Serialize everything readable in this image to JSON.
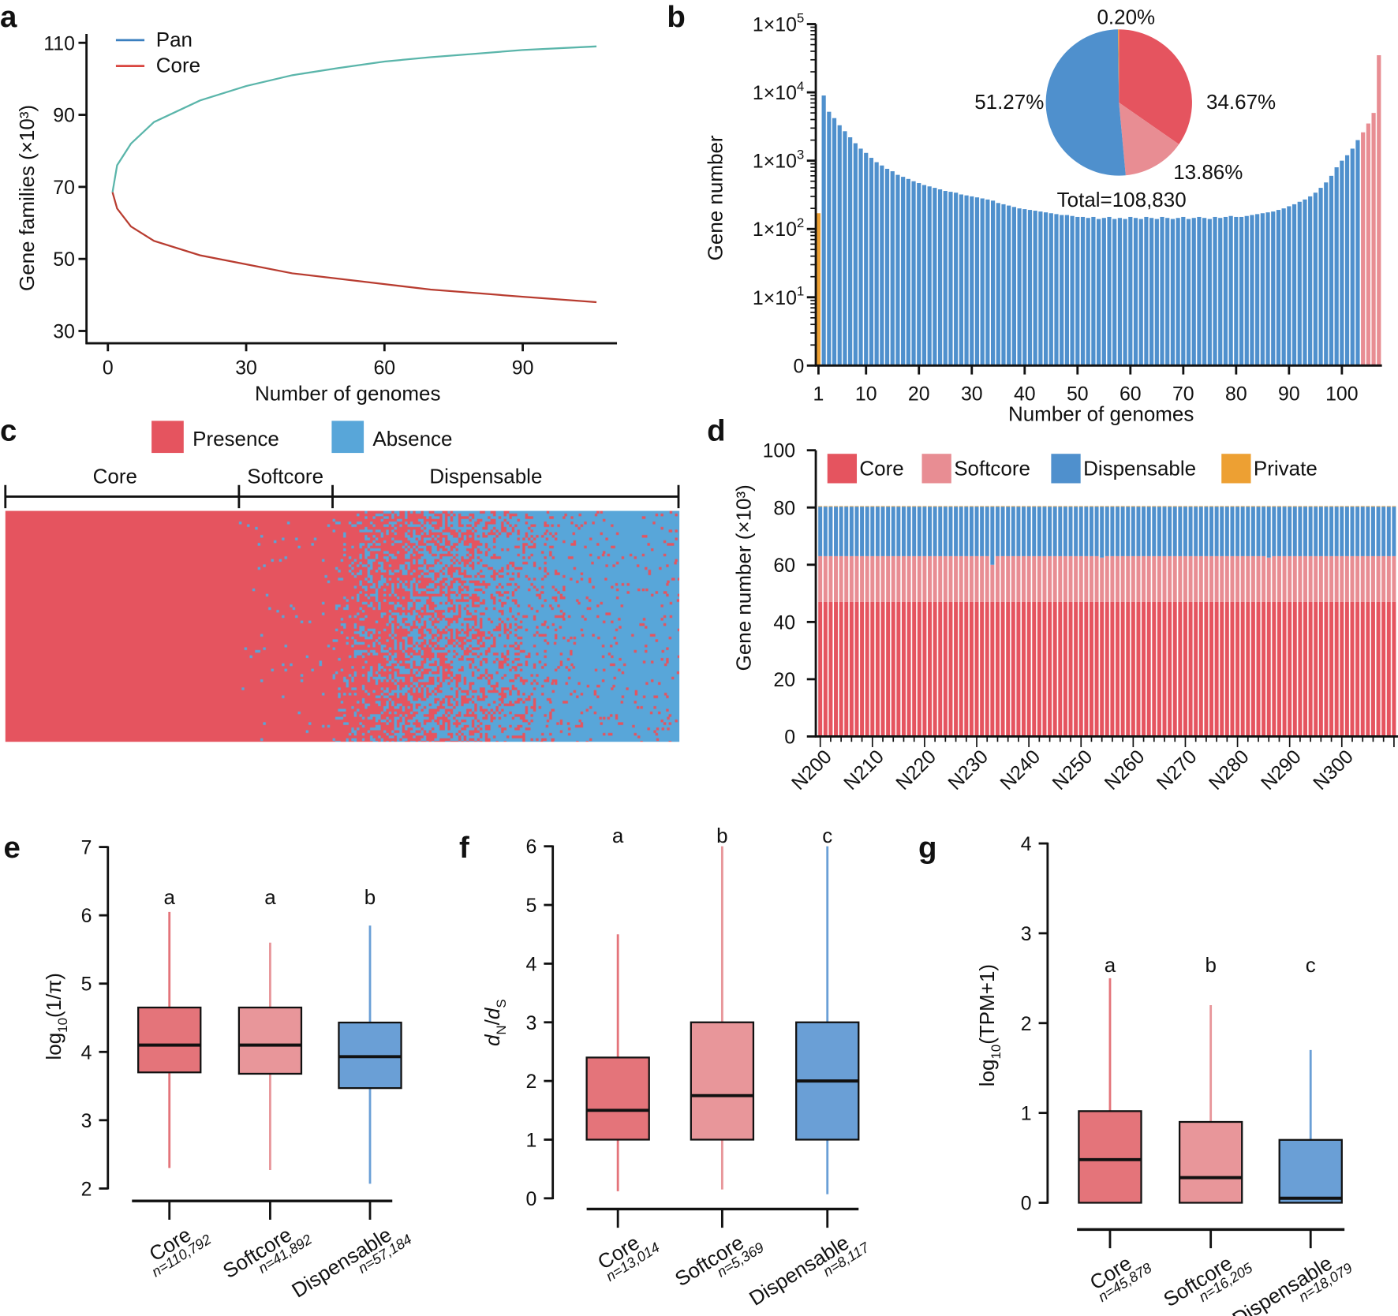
{
  "panels": {
    "a": "a",
    "b": "b",
    "c": "c",
    "d": "d",
    "e": "e",
    "f": "f",
    "g": "g"
  },
  "colors": {
    "core": "#e5545f",
    "softcore": "#e88d93",
    "dispensable": "#4f90cd",
    "private": "#eda033",
    "pan_line": "#5ab5aa",
    "core_line": "#b83c30",
    "pan_legend": "#3a7fbf",
    "core_legend": "#d9453f",
    "presence": "#e5545f",
    "absence": "#58a6d9",
    "box_core": "#e4747a",
    "box_softcore": "#e8969a",
    "box_dispensable": "#6a9fd6"
  },
  "chart_data": [
    {
      "panel": "a",
      "type": "line",
      "xlabel": "Number of genomes",
      "ylabel": "Gene families (×10³)",
      "xlim": [
        0,
        110
      ],
      "ylim": [
        30,
        110
      ],
      "xticks": [
        0,
        30,
        60,
        90
      ],
      "yticks": [
        30,
        50,
        70,
        90,
        110
      ],
      "legend": "top-left",
      "x": [
        1,
        2,
        5,
        10,
        20,
        30,
        40,
        50,
        60,
        70,
        80,
        90,
        106
      ],
      "series": [
        {
          "name": "Pan",
          "values": [
            68.5,
            76,
            82,
            88,
            94,
            98,
            101,
            103,
            104.8,
            106,
            107,
            108,
            109
          ]
        },
        {
          "name": "Core",
          "values": [
            68.5,
            64,
            59,
            55,
            51,
            48.5,
            46,
            44.5,
            43,
            41.5,
            40.5,
            39.5,
            38
          ]
        }
      ]
    },
    {
      "panel": "b",
      "type": "bar",
      "xlabel": "Number of genomes",
      "ylabel": "Gene number",
      "yscale": "log",
      "yticks": [
        "0",
        "1×10^1",
        "1×10^2",
        "1×10^3",
        "1×10^4",
        "1×10^5"
      ],
      "xticks": [
        1,
        10,
        20,
        30,
        40,
        50,
        60,
        70,
        80,
        90,
        100
      ],
      "values": [
        170,
        9000,
        5200,
        4200,
        3300,
        2700,
        2200,
        1800,
        1500,
        1300,
        1100,
        950,
        850,
        760,
        700,
        620,
        580,
        540,
        500,
        470,
        440,
        420,
        400,
        380,
        360,
        350,
        340,
        320,
        310,
        300,
        290,
        280,
        270,
        260,
        240,
        230,
        220,
        210,
        200,
        195,
        190,
        185,
        180,
        175,
        170,
        165,
        160,
        160,
        155,
        150,
        150,
        145,
        150,
        140,
        145,
        150,
        140,
        145,
        140,
        150,
        145,
        140,
        150,
        145,
        140,
        150,
        145,
        140,
        145,
        150,
        140,
        145,
        150,
        145,
        140,
        150,
        145,
        150,
        155,
        150,
        150,
        155,
        160,
        165,
        170,
        175,
        180,
        190,
        200,
        215,
        230,
        250,
        270,
        300,
        340,
        400,
        480,
        600,
        800,
        1000,
        1200,
        1500,
        2000,
        2600,
        3500,
        5000,
        35000
      ],
      "categories_by_genome": {
        "private": [
          1,
          1
        ],
        "dispensable": [
          2,
          103
        ],
        "softcore": [
          104,
          107
        ],
        "core": [
          108,
          108
        ]
      },
      "pie": {
        "total_label": "Total=108,830",
        "slices": [
          {
            "category": "core",
            "percent": 34.67,
            "label": "34.67%"
          },
          {
            "category": "softcore",
            "percent": 13.86,
            "label": "13.86%"
          },
          {
            "category": "dispensable",
            "percent": 51.27,
            "label": "51.27%"
          },
          {
            "category": "private",
            "percent": 0.2,
            "label": "0.20%"
          }
        ]
      }
    },
    {
      "panel": "c",
      "type": "heatmap",
      "legend": [
        {
          "key": "presence",
          "label": "Presence"
        },
        {
          "key": "absence",
          "label": "Absence"
        }
      ],
      "sections": [
        "Core",
        "Softcore",
        "Dispensable"
      ]
    },
    {
      "panel": "d",
      "type": "bar",
      "stacked": true,
      "ylabel": "Gene number (×10³)",
      "ylim": [
        0,
        100
      ],
      "yticks": [
        0,
        20,
        40,
        60,
        80,
        100
      ],
      "xticks": [
        "N200",
        "N210",
        "N220",
        "N230",
        "N240",
        "N250",
        "N260",
        "N270",
        "N280",
        "N290",
        "N300"
      ],
      "sample_range": [
        "N200",
        "N310"
      ],
      "legend": [
        {
          "key": "core",
          "label": "Core"
        },
        {
          "key": "softcore",
          "label": "Softcore"
        },
        {
          "key": "dispensable",
          "label": "Dispensable"
        },
        {
          "key": "private",
          "label": "Private"
        }
      ],
      "core": 47,
      "softcore": 16,
      "dispensable": 17.3,
      "private": 0.2,
      "exceptions": [
        {
          "sample": "N233",
          "softcore": 13
        },
        {
          "sample": "N254",
          "softcore": 15.5
        },
        {
          "sample": "N286",
          "softcore": 15.5
        }
      ]
    },
    {
      "panel": "e",
      "type": "box",
      "ylabel": {
        "base": "log",
        "sub": "10",
        "rest": "(1/π)"
      },
      "ylim": [
        2,
        7
      ],
      "yticks": [
        2,
        3,
        4,
        5,
        6,
        7
      ],
      "groups": [
        {
          "key": "core",
          "label": "Core",
          "n": "n=110,792",
          "letter": "a",
          "min": 2.3,
          "q1": 3.7,
          "median": 4.1,
          "q3": 4.65,
          "max": 6.05
        },
        {
          "key": "softcore",
          "label": "Softcore",
          "n": "n=41,892",
          "letter": "a",
          "min": 2.27,
          "q1": 3.68,
          "median": 4.1,
          "q3": 4.65,
          "max": 5.6
        },
        {
          "key": "dispensable",
          "label": "Dispensable",
          "n": "n=57,184",
          "letter": "b",
          "min": 2.07,
          "q1": 3.47,
          "median": 3.93,
          "q3": 4.43,
          "max": 5.85
        }
      ]
    },
    {
      "panel": "f",
      "type": "box",
      "ylabel": {
        "d1": "d",
        "s1": "N",
        "slash": "/",
        "d2": "d",
        "s2": "S"
      },
      "ylim": [
        0,
        6
      ],
      "yticks": [
        0,
        1,
        2,
        3,
        4,
        5,
        6
      ],
      "groups": [
        {
          "key": "core",
          "label": "Core",
          "n": "n=13,014",
          "letter": "a",
          "min": 0.12,
          "q1": 1,
          "median": 1.5,
          "q3": 2.4,
          "max": 4.5
        },
        {
          "key": "softcore",
          "label": "Softcore",
          "n": "n=5,369",
          "letter": "b",
          "min": 0.15,
          "q1": 1,
          "median": 1.75,
          "q3": 3,
          "max": 6
        },
        {
          "key": "dispensable",
          "label": "Dispensable",
          "n": "n=8,117",
          "letter": "c",
          "min": 0.07,
          "q1": 1,
          "median": 2,
          "q3": 3,
          "max": 6
        }
      ]
    },
    {
      "panel": "g",
      "type": "box",
      "ylabel": {
        "base": "log",
        "sub": "10",
        "rest": "(TPM+1)"
      },
      "ylim": [
        0,
        4
      ],
      "yticks": [
        0,
        1,
        2,
        3,
        4
      ],
      "groups": [
        {
          "key": "core",
          "label": "Core",
          "n": "n=45,878",
          "letter": "a",
          "min": 0,
          "q1": 0,
          "median": 0.48,
          "q3": 1.02,
          "max": 2.5
        },
        {
          "key": "softcore",
          "label": "Softcore",
          "n": "n=16,205",
          "letter": "b",
          "min": 0,
          "q1": 0,
          "median": 0.28,
          "q3": 0.9,
          "max": 2.2
        },
        {
          "key": "dispensable",
          "label": "Dispensable",
          "n": "n=18,079",
          "letter": "c",
          "min": 0,
          "q1": 0,
          "median": 0.05,
          "q3": 0.7,
          "max": 1.7
        }
      ]
    }
  ]
}
